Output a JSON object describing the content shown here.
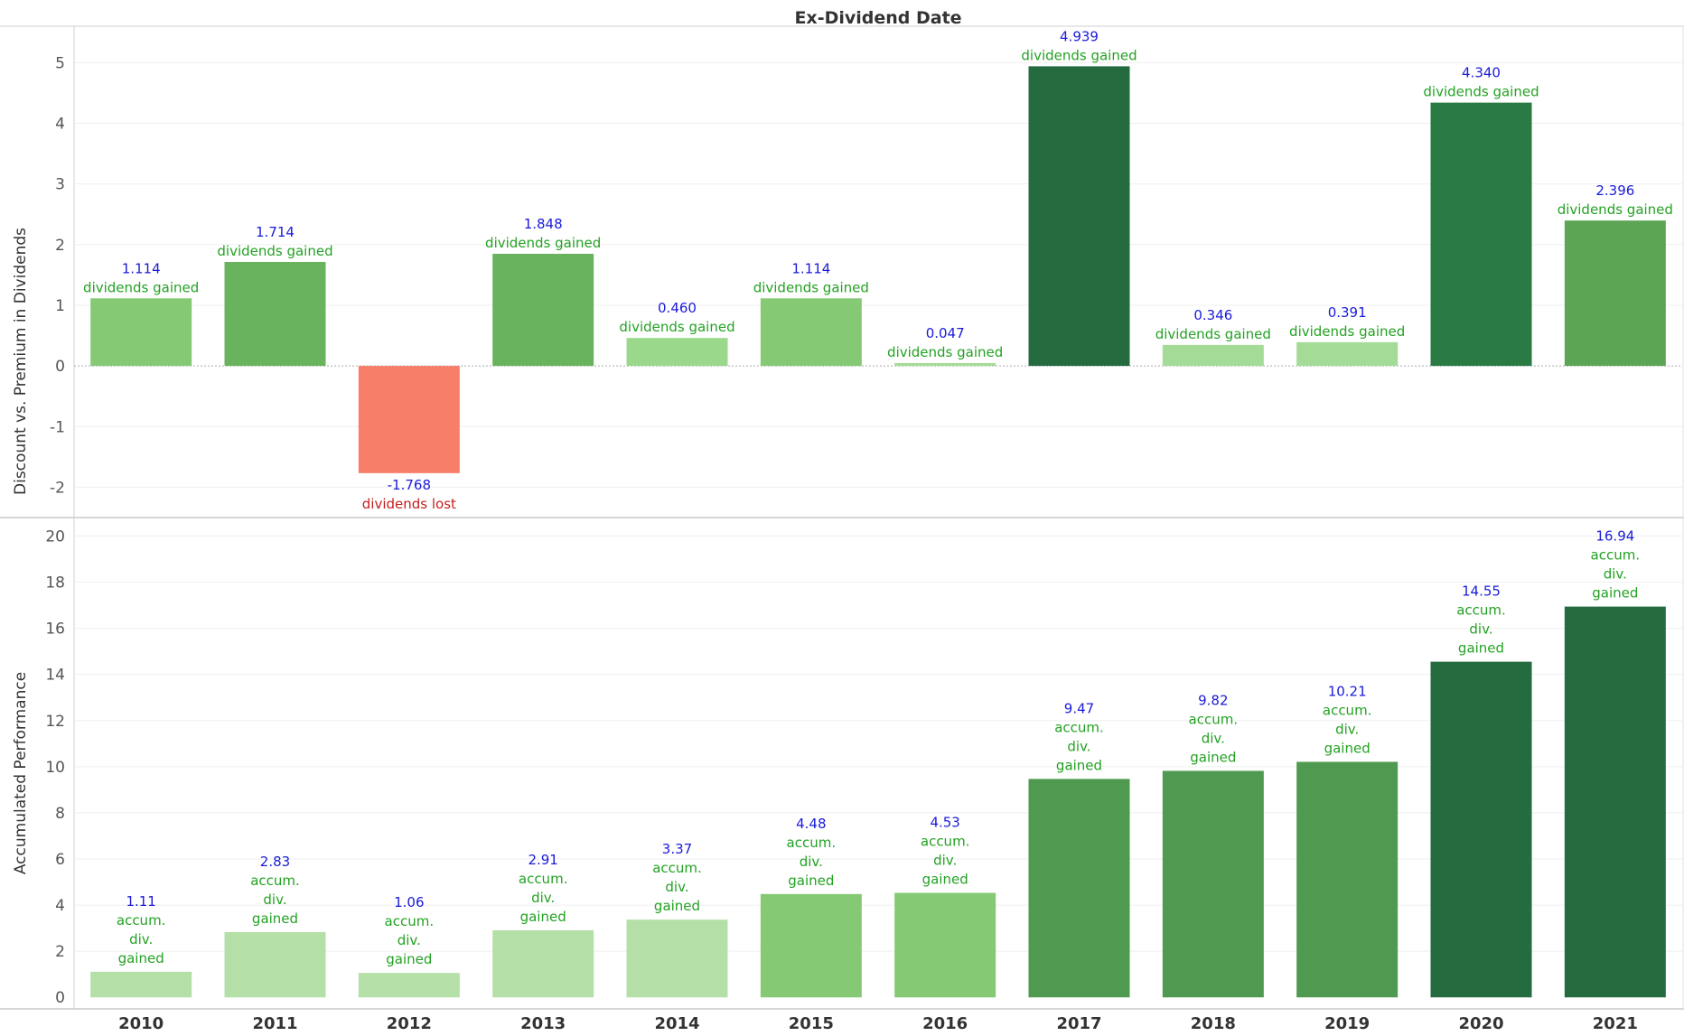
{
  "title": "Ex-Dividend Date",
  "chart_data": [
    {
      "type": "bar",
      "ylabel": "Discount vs. Premium in Dividends",
      "ylim": [
        -2.5,
        5.6
      ],
      "yticks": [
        "-2",
        "-1",
        "0",
        "1",
        "2",
        "3",
        "4",
        "5"
      ],
      "categories": [
        "2010",
        "2011",
        "2012",
        "2013",
        "2014",
        "2015",
        "2016",
        "2017",
        "2018",
        "2019",
        "2020",
        "2021"
      ],
      "values": [
        1.114,
        1.714,
        -1.768,
        1.848,
        0.46,
        1.114,
        0.047,
        4.939,
        0.346,
        0.391,
        4.34,
        2.396
      ],
      "value_labels": [
        "1.114",
        "1.714",
        "-1.768",
        "1.848",
        "0.460",
        "1.114",
        "0.047",
        "4.939",
        "0.346",
        "0.391",
        "4.340",
        "2.396"
      ],
      "annotations": [
        "dividends gained",
        "dividends gained",
        "dividends lost",
        "dividends gained",
        "dividends gained",
        "dividends gained",
        "dividends gained",
        "dividends gained",
        "dividends gained",
        "dividends gained",
        "dividends gained",
        "dividends gained"
      ],
      "colors": [
        "#85c975",
        "#6ab35e",
        "#f77e68",
        "#6ab35e",
        "#9ad88c",
        "#85c975",
        "#a4dc97",
        "#246b40",
        "#a4dc97",
        "#a4dc97",
        "#2a7a43",
        "#5ba555"
      ]
    },
    {
      "type": "bar",
      "ylabel": "Accumulated Performance",
      "ylim": [
        -0.5,
        20.8
      ],
      "yticks": [
        "0",
        "2",
        "4",
        "6",
        "8",
        "10",
        "12",
        "14",
        "16",
        "18",
        "20"
      ],
      "categories": [
        "2010",
        "2011",
        "2012",
        "2013",
        "2014",
        "2015",
        "2016",
        "2017",
        "2018",
        "2019",
        "2020",
        "2021"
      ],
      "values": [
        1.11,
        2.83,
        1.06,
        2.91,
        3.37,
        4.48,
        4.53,
        9.47,
        9.82,
        10.21,
        14.55,
        16.94
      ],
      "value_labels": [
        "1.11",
        "2.83",
        "1.06",
        "2.91",
        "3.37",
        "4.48",
        "4.53",
        "9.47",
        "9.82",
        "10.21",
        "14.55",
        "16.94"
      ],
      "annotation_lines": [
        "accum.",
        "div.",
        "gained"
      ],
      "colors": [
        "#b4e0a8",
        "#b4e0a8",
        "#b4e0a8",
        "#b4e0a8",
        "#b4e0a8",
        "#85c975",
        "#85c975",
        "#4f9a50",
        "#4f9a50",
        "#4f9a50",
        "#246b40",
        "#246b40"
      ]
    }
  ],
  "colors": {
    "value_text": "#1a1adb",
    "gained_text": "#23a223",
    "lost_text": "#c41f1f"
  }
}
